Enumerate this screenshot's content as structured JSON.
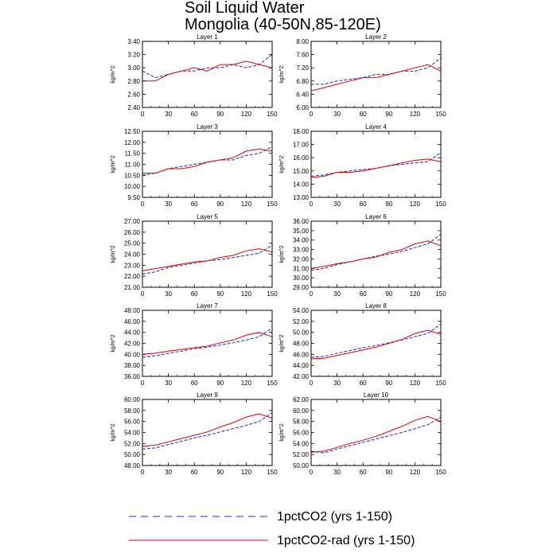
{
  "title": {
    "line1": "Soil Liquid Water",
    "line2": "Mongolia (40-50N,85-120E)"
  },
  "legend": [
    {
      "name": "1pctCO2 (yrs 1-150)",
      "color": "#2020e0",
      "dash": true
    },
    {
      "name": "1pctCO2-rad (yrs 1-150)",
      "color": "#e00000",
      "dash": false
    }
  ],
  "chart_data": [
    {
      "type": "line",
      "title": "Layer 1",
      "ylabel": "kg/m^2",
      "xlim": [
        0,
        150
      ],
      "ylim": [
        2.4,
        3.4
      ],
      "xticks": [
        0,
        30,
        60,
        90,
        120,
        150
      ],
      "yticks": [
        2.4,
        2.6,
        2.8,
        3.0,
        3.2,
        3.4
      ],
      "x": [
        0,
        15,
        30,
        45,
        60,
        75,
        90,
        105,
        120,
        135,
        150
      ],
      "series": [
        {
          "name": "1pctCO2 (yrs 1-150)",
          "values": [
            2.95,
            2.85,
            2.9,
            2.95,
            2.95,
            3.0,
            3.0,
            3.05,
            3.0,
            3.05,
            3.2
          ]
        },
        {
          "name": "1pctCO2-rad (yrs 1-150)",
          "values": [
            2.8,
            2.8,
            2.9,
            2.95,
            3.0,
            2.95,
            3.05,
            3.05,
            3.1,
            3.05,
            3.0
          ]
        }
      ]
    },
    {
      "type": "line",
      "title": "Layer 2",
      "ylabel": "kg/m^2",
      "xlim": [
        0,
        150
      ],
      "ylim": [
        6.0,
        8.0
      ],
      "xticks": [
        0,
        30,
        60,
        90,
        120,
        150
      ],
      "yticks": [
        6.0,
        6.4,
        6.8,
        7.2,
        7.6,
        8.0
      ],
      "x": [
        0,
        15,
        30,
        45,
        60,
        75,
        90,
        105,
        120,
        135,
        150
      ],
      "series": [
        {
          "name": "1pctCO2 (yrs 1-150)",
          "values": [
            6.7,
            6.7,
            6.8,
            6.85,
            6.9,
            7.0,
            7.0,
            7.1,
            7.1,
            7.2,
            7.5
          ]
        },
        {
          "name": "1pctCO2-rad (yrs 1-150)",
          "values": [
            6.5,
            6.6,
            6.7,
            6.8,
            6.9,
            6.9,
            7.0,
            7.1,
            7.2,
            7.3,
            7.1
          ]
        }
      ]
    },
    {
      "type": "line",
      "title": "Layer 3",
      "ylabel": "kg/m^2",
      "xlim": [
        0,
        150
      ],
      "ylim": [
        9.5,
        12.5
      ],
      "xticks": [
        0,
        30,
        60,
        90,
        120,
        150
      ],
      "yticks": [
        9.5,
        10.0,
        10.5,
        11.0,
        11.5,
        12.0,
        12.5
      ],
      "x": [
        0,
        15,
        30,
        45,
        60,
        75,
        90,
        105,
        120,
        135,
        150
      ],
      "series": [
        {
          "name": "1pctCO2 (yrs 1-150)",
          "values": [
            10.5,
            10.6,
            10.8,
            10.9,
            11.0,
            11.1,
            11.2,
            11.2,
            11.4,
            11.5,
            11.8
          ]
        },
        {
          "name": "1pctCO2-rad (yrs 1-150)",
          "values": [
            10.6,
            10.6,
            10.8,
            10.8,
            10.9,
            11.1,
            11.2,
            11.3,
            11.6,
            11.7,
            11.6
          ]
        }
      ]
    },
    {
      "type": "line",
      "title": "Layer 4",
      "ylabel": "kg/m^2",
      "xlim": [
        0,
        150
      ],
      "ylim": [
        13.0,
        18.0
      ],
      "xticks": [
        0,
        30,
        60,
        90,
        120,
        150
      ],
      "yticks": [
        13.0,
        14.0,
        15.0,
        16.0,
        17.0,
        18.0
      ],
      "x": [
        0,
        15,
        30,
        45,
        60,
        75,
        90,
        105,
        120,
        135,
        150
      ],
      "series": [
        {
          "name": "1pctCO2 (yrs 1-150)",
          "values": [
            14.6,
            14.7,
            14.9,
            15.0,
            15.1,
            15.2,
            15.4,
            15.5,
            15.6,
            15.7,
            16.4
          ]
        },
        {
          "name": "1pctCO2-rad (yrs 1-150)",
          "values": [
            14.5,
            14.6,
            14.9,
            14.9,
            15.0,
            15.2,
            15.4,
            15.6,
            15.8,
            15.9,
            15.7
          ]
        }
      ]
    },
    {
      "type": "line",
      "title": "Layer 5",
      "ylabel": "kg/m^2",
      "xlim": [
        0,
        150
      ],
      "ylim": [
        21.0,
        27.0
      ],
      "xticks": [
        0,
        30,
        60,
        90,
        120,
        150
      ],
      "yticks": [
        21.0,
        22.0,
        23.0,
        24.0,
        25.0,
        26.0,
        27.0
      ],
      "x": [
        0,
        15,
        30,
        45,
        60,
        75,
        90,
        105,
        120,
        135,
        150
      ],
      "series": [
        {
          "name": "1pctCO2 (yrs 1-150)",
          "values": [
            22.2,
            22.4,
            22.8,
            23.0,
            23.2,
            23.4,
            23.5,
            23.7,
            23.9,
            24.1,
            24.8
          ]
        },
        {
          "name": "1pctCO2-rad (yrs 1-150)",
          "values": [
            22.5,
            22.7,
            22.9,
            23.1,
            23.3,
            23.4,
            23.7,
            23.9,
            24.3,
            24.5,
            24.2
          ]
        }
      ]
    },
    {
      "type": "line",
      "title": "Layer 6",
      "ylabel": "kg/m^2",
      "xlim": [
        0,
        150
      ],
      "ylim": [
        29.0,
        36.0
      ],
      "xticks": [
        0,
        30,
        60,
        90,
        120,
        150
      ],
      "yticks": [
        29.0,
        30.0,
        31.0,
        32.0,
        33.0,
        34.0,
        35.0,
        36.0
      ],
      "x": [
        0,
        15,
        30,
        45,
        60,
        75,
        90,
        105,
        120,
        135,
        150
      ],
      "series": [
        {
          "name": "1pctCO2 (yrs 1-150)",
          "values": [
            30.8,
            31.0,
            31.4,
            31.7,
            32.0,
            32.3,
            32.5,
            32.8,
            33.2,
            33.6,
            34.6
          ]
        },
        {
          "name": "1pctCO2-rad (yrs 1-150)",
          "values": [
            31.0,
            31.2,
            31.5,
            31.7,
            32.0,
            32.2,
            32.7,
            33.0,
            33.6,
            33.9,
            33.4
          ]
        }
      ]
    },
    {
      "type": "line",
      "title": "Layer 7",
      "ylabel": "kg/m^2",
      "xlim": [
        0,
        150
      ],
      "ylim": [
        36.0,
        48.0
      ],
      "xticks": [
        0,
        30,
        60,
        90,
        120,
        150
      ],
      "yticks": [
        36.0,
        38.0,
        40.0,
        42.0,
        44.0,
        46.0,
        48.0
      ],
      "x": [
        0,
        15,
        30,
        45,
        60,
        75,
        90,
        105,
        120,
        135,
        150
      ],
      "series": [
        {
          "name": "1pctCO2 (yrs 1-150)",
          "values": [
            39.5,
            39.7,
            40.2,
            40.6,
            41.0,
            41.3,
            41.7,
            42.1,
            42.6,
            43.2,
            44.8
          ]
        },
        {
          "name": "1pctCO2-rad (yrs 1-150)",
          "values": [
            40.0,
            40.2,
            40.6,
            40.9,
            41.2,
            41.5,
            42.1,
            42.6,
            43.5,
            44.0,
            43.2
          ]
        }
      ]
    },
    {
      "type": "line",
      "title": "Layer 8",
      "ylabel": "kg/m^2",
      "xlim": [
        0,
        150
      ],
      "ylim": [
        42.0,
        54.0
      ],
      "xticks": [
        0,
        30,
        60,
        90,
        120,
        150
      ],
      "yticks": [
        42.0,
        44.0,
        46.0,
        48.0,
        50.0,
        52.0,
        54.0
      ],
      "x": [
        0,
        15,
        30,
        45,
        60,
        75,
        90,
        105,
        120,
        135,
        150
      ],
      "series": [
        {
          "name": "1pctCO2 (yrs 1-150)",
          "values": [
            45.5,
            45.6,
            46.2,
            46.7,
            47.2,
            47.6,
            48.1,
            48.6,
            49.2,
            49.8,
            51.5
          ]
        },
        {
          "name": "1pctCO2-rad (yrs 1-150)",
          "values": [
            45.2,
            45.3,
            45.8,
            46.3,
            46.8,
            47.3,
            48.0,
            48.7,
            49.8,
            50.4,
            49.6
          ]
        }
      ]
    },
    {
      "type": "line",
      "title": "Layer 9",
      "ylabel": "kg/m^2",
      "xlim": [
        0,
        150
      ],
      "ylim": [
        48.0,
        60.0
      ],
      "xticks": [
        0,
        30,
        60,
        90,
        120,
        150
      ],
      "yticks": [
        48.0,
        50.0,
        52.0,
        54.0,
        56.0,
        58.0,
        60.0
      ],
      "x": [
        0,
        15,
        30,
        45,
        60,
        75,
        90,
        105,
        120,
        135,
        150
      ],
      "series": [
        {
          "name": "1pctCO2 (yrs 1-150)",
          "values": [
            51.0,
            51.2,
            51.8,
            52.4,
            53.0,
            53.5,
            54.1,
            54.7,
            55.3,
            56.0,
            57.6
          ]
        },
        {
          "name": "1pctCO2-rad (yrs 1-150)",
          "values": [
            51.5,
            51.7,
            52.3,
            52.9,
            53.5,
            54.1,
            55.0,
            55.8,
            56.8,
            57.4,
            56.6
          ]
        }
      ]
    },
    {
      "type": "line",
      "title": "Layer 10",
      "ylabel": "kg/m^2",
      "xlim": [
        0,
        150
      ],
      "ylim": [
        50.0,
        62.0
      ],
      "xticks": [
        0,
        30,
        60,
        90,
        120,
        150
      ],
      "yticks": [
        50.0,
        52.0,
        54.0,
        56.0,
        58.0,
        60.0,
        62.0
      ],
      "x": [
        0,
        15,
        30,
        45,
        60,
        75,
        90,
        105,
        120,
        135,
        150
      ],
      "series": [
        {
          "name": "1pctCO2 (yrs 1-150)",
          "values": [
            52.6,
            52.3,
            53.0,
            53.6,
            54.2,
            54.8,
            55.4,
            56.0,
            56.7,
            57.4,
            58.8
          ]
        },
        {
          "name": "1pctCO2-rad (yrs 1-150)",
          "values": [
            52.4,
            52.6,
            53.3,
            54.0,
            54.6,
            55.3,
            56.2,
            57.1,
            58.2,
            58.9,
            58.0
          ]
        }
      ]
    }
  ]
}
